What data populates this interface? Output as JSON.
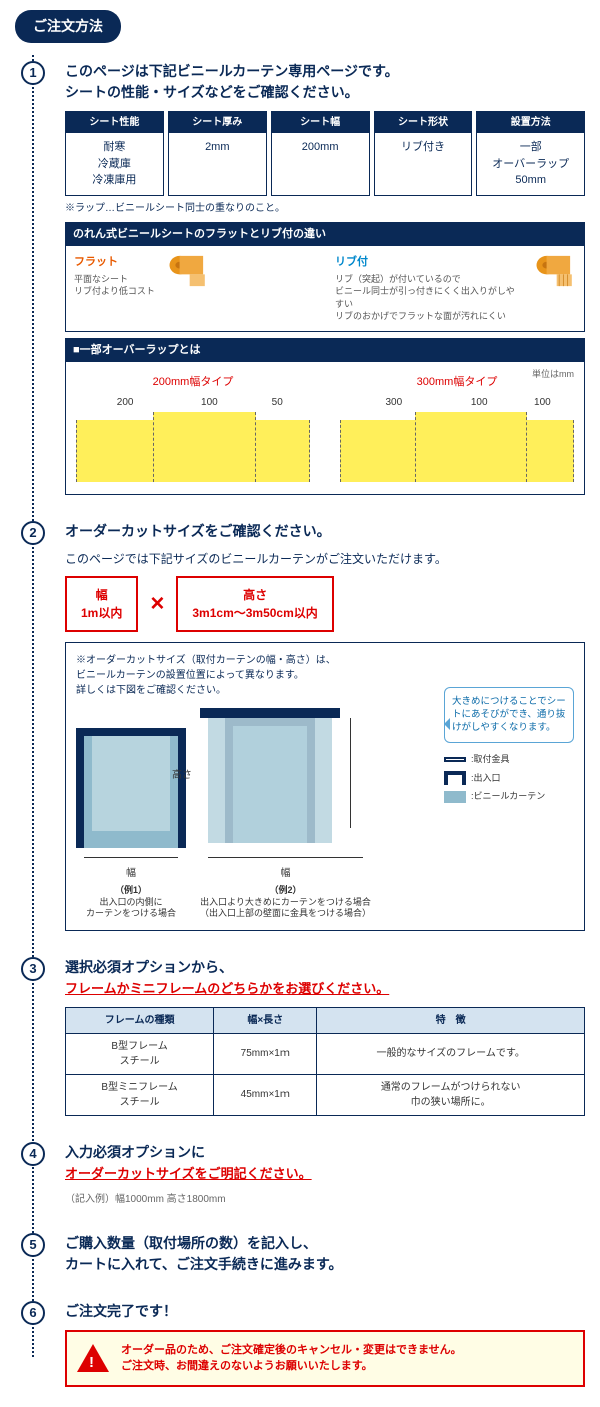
{
  "title": "ご注文方法",
  "step1": {
    "h1": "このページは下記ビニールカーテン専用ページです。",
    "h2": "シートの性能・サイズなどをご確認ください。",
    "specs": [
      {
        "head": "シート性能",
        "body": "耐寒\n冷蔵庫\n冷凍庫用"
      },
      {
        "head": "シート厚み",
        "body": "2mm"
      },
      {
        "head": "シート幅",
        "body": "200mm"
      },
      {
        "head": "シート形状",
        "body": "リブ付き"
      },
      {
        "head": "設置方法",
        "body": "一部\nオーバーラップ\n50mm"
      }
    ],
    "lap_note": "※ラップ…ビニールシート同士の重なりのこと。",
    "sec1_title": "のれん式ビニールシートのフラットとリブ付の違い",
    "flat": {
      "title": "フラット",
      "desc": "平面なシート\nリブ付より低コスト",
      "color": "#e85a00"
    },
    "rib": {
      "title": "リブ付",
      "desc": "リブ（突起）が付いているので\nビニール同士が引っ付きにくく出入りがしやすい\nリブのおかげでフラットな面が汚れにくい",
      "color": "#0088cc"
    },
    "sec2_title": "■一部オーバーラップとは",
    "unit": "単位はmm",
    "ov200": {
      "title": "200mm幅タイプ",
      "dims": [
        "200",
        "100",
        "50"
      ]
    },
    "ov300": {
      "title": "300mm幅タイプ",
      "dims": [
        "300",
        "100",
        "100"
      ]
    }
  },
  "step2": {
    "h": "オーダーカットサイズをご確認ください。",
    "sub": "このページでは下記サイズのビニールカーテンがご注文いただけます。",
    "width": {
      "label": "幅",
      "val": "1m以内"
    },
    "height": {
      "label": "高さ",
      "val": "3m1cm～3m50cm以内"
    },
    "diag_note": "※オーダーカットサイズ（取付カーテンの幅・高さ）は、\nビニールカーテンの設置位置によって異なります。\n詳しくは下図をご確認ください。",
    "balloon": "大きめにつけることでシートにあそびができ、通り抜けがしやすくなります。",
    "legend": [
      ":取付金具",
      ":出入口",
      ":ビニールカーテン"
    ],
    "w_lab": "幅",
    "h_lab": "高さ",
    "ex1": {
      "t": "（例1）",
      "d": "出入口の内側に\nカーテンをつける場合"
    },
    "ex2": {
      "t": "（例2）",
      "d": "出入口より大きめにカーテンをつける場合\n（出入口上部の壁面に金具をつける場合）"
    }
  },
  "step3": {
    "h1": "選択必須オプションから、",
    "h2": "フレームかミニフレームのどちらかをお選びください。",
    "cols": [
      "フレームの種類",
      "幅×長さ",
      "特　徴"
    ],
    "rows": [
      [
        "B型フレーム\nスチール",
        "75mm×1ｍ",
        "一般的なサイズのフレームです。"
      ],
      [
        "B型ミニフレーム\nスチール",
        "45mm×1ｍ",
        "通常のフレームがつけられない\n巾の狭い場所に。"
      ]
    ]
  },
  "step4": {
    "h1": "入力必須オプションに",
    "h2": "オーダーカットサイズをご明記ください。",
    "ex": "（記入例）幅1000mm 高さ1800mm"
  },
  "step5": {
    "h": "ご購入数量（取付場所の数）を記入し、\nカートに入れて、ご注文手続きに進みます。"
  },
  "step6": {
    "h": "ご注文完了です！"
  },
  "warn": "オーダー品のため、ご注文確定後のキャンセル・変更はできません。\nご注文時、お間違えのないようお願いいたします。"
}
